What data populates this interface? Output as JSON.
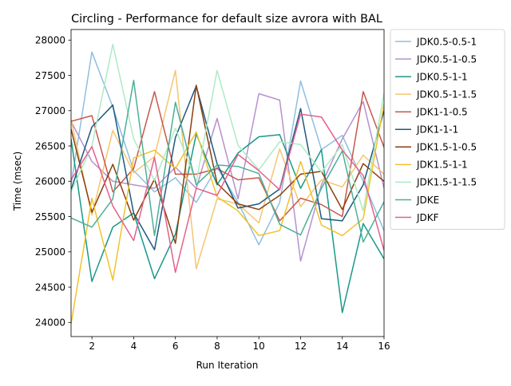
{
  "chart_data": {
    "type": "line",
    "title": "Circling - Performance for default size avrora with BAL",
    "xlabel": "Run Iteration",
    "ylabel": "Time (msec)",
    "xlim": [
      1,
      16
    ],
    "ylim": [
      23800,
      28150
    ],
    "x": [
      1,
      2,
      3,
      4,
      5,
      6,
      7,
      8,
      9,
      10,
      11,
      12,
      13,
      14,
      15,
      16
    ],
    "x_ticks": [
      "2",
      "4",
      "6",
      "8",
      "10",
      "12",
      "14",
      "16"
    ],
    "y_ticks": [
      "24000",
      "24500",
      "25000",
      "25500",
      "26000",
      "26500",
      "27000",
      "27500",
      "28000"
    ],
    "grid": false,
    "legend_placement": "outside-right",
    "series": [
      {
        "name": "JDK0.5-0.5-1",
        "color": "#8fbee0",
        "values": [
          25950,
          27830,
          27050,
          26150,
          25850,
          26050,
          25700,
          26200,
          25700,
          25100,
          25700,
          27420,
          26450,
          26650,
          26000,
          25300
        ]
      },
      {
        "name": "JDK0.5-1-0.5",
        "color": "#b592cf",
        "values": [
          26850,
          26280,
          26000,
          25950,
          25900,
          26200,
          25900,
          26890,
          25750,
          27240,
          27150,
          24870,
          25950,
          26600,
          27130,
          25900
        ]
      },
      {
        "name": "JDK0.5-1-1",
        "color": "#17998a",
        "values": [
          26600,
          24580,
          25350,
          25550,
          24620,
          25250,
          26670,
          25950,
          26400,
          26630,
          26660,
          25900,
          26450,
          24140,
          25400,
          24900
        ]
      },
      {
        "name": "JDK0.5-1-1.5",
        "color": "#f5c571",
        "values": [
          26870,
          25520,
          26720,
          26120,
          26350,
          27570,
          24760,
          25750,
          25680,
          25410,
          26460,
          25640,
          26020,
          25920,
          26370,
          26100
        ]
      },
      {
        "name": "JDK1-1-0.5",
        "color": "#c7584c",
        "values": [
          26850,
          26930,
          25850,
          26180,
          27270,
          26100,
          26100,
          26180,
          26020,
          26050,
          25440,
          25760,
          25670,
          25500,
          27270,
          26480
        ]
      },
      {
        "name": "JDK1-1-1",
        "color": "#1d5981",
        "values": [
          25880,
          26770,
          27080,
          25550,
          25030,
          26620,
          27350,
          26250,
          25620,
          25680,
          25890,
          27030,
          25470,
          25440,
          25950,
          27000
        ]
      },
      {
        "name": "JDK1.5-1-0.5",
        "color": "#8a3f0e",
        "values": [
          26740,
          25560,
          26240,
          25450,
          26030,
          25120,
          27360,
          25970,
          25680,
          25600,
          25800,
          26100,
          26140,
          25600,
          26250,
          26000
        ]
      },
      {
        "name": "JDK1.5-1-1",
        "color": "#f2c22c",
        "values": [
          23980,
          25760,
          24600,
          26330,
          26440,
          26180,
          26700,
          25780,
          25580,
          25230,
          25300,
          26280,
          25380,
          25230,
          25470,
          27100
        ]
      },
      {
        "name": "JDK1.5-1-1.5",
        "color": "#acebc4",
        "values": [
          25850,
          26500,
          27940,
          26600,
          26010,
          26750,
          25990,
          27570,
          26510,
          26160,
          26560,
          26520,
          26130,
          26520,
          25580,
          27250
        ]
      },
      {
        "name": "JDKE",
        "color": "#4caf98",
        "values": [
          25480,
          25350,
          25750,
          27430,
          25230,
          27120,
          25950,
          26230,
          26210,
          26110,
          25390,
          25240,
          25900,
          26430,
          25140,
          25710
        ]
      },
      {
        "name": "JDKF",
        "color": "#e5608b",
        "values": [
          26020,
          26490,
          25650,
          25160,
          26340,
          24710,
          25900,
          25800,
          26380,
          26150,
          25880,
          26950,
          26910,
          26440,
          26080,
          25020
        ]
      }
    ]
  }
}
